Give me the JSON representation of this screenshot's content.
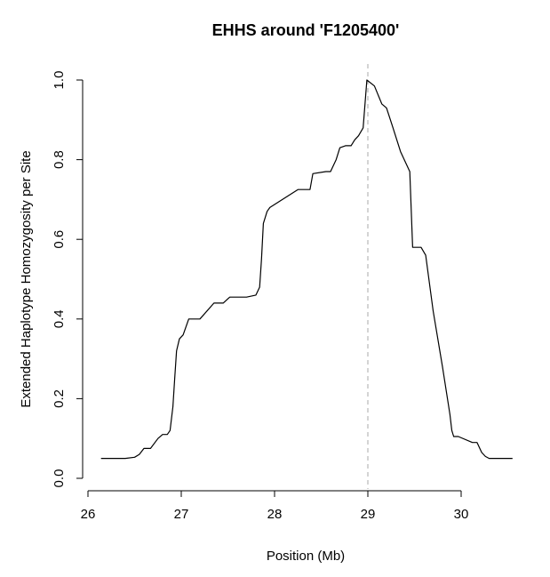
{
  "chart_data": {
    "type": "line",
    "title": "EHHS around 'F1205400'",
    "xlabel": "Position (Mb)",
    "ylabel": "Extended Haplotype Homozygosity per Site",
    "xlim": [
      26,
      30
    ],
    "ylim": [
      0,
      1
    ],
    "x_ticks": [
      26,
      27,
      28,
      29,
      30
    ],
    "y_ticks": [
      0.0,
      0.2,
      0.4,
      0.6,
      0.8,
      1.0
    ],
    "x_tick_labels": [
      "26",
      "27",
      "28",
      "29",
      "30"
    ],
    "y_tick_labels": [
      "0.0",
      "0.2",
      "0.4",
      "0.6",
      "0.8",
      "1.0"
    ],
    "reference_line": {
      "x": 29.0,
      "color": "#aaaaaa",
      "style": "dashed"
    },
    "grid": false,
    "series": [
      {
        "color": "#000000",
        "x": [
          26.14,
          26.4,
          26.5,
          26.55,
          26.6,
          26.67,
          26.75,
          26.8,
          26.85,
          26.88,
          26.91,
          26.93,
          26.95,
          26.98,
          27.02,
          27.08,
          27.2,
          27.35,
          27.45,
          27.52,
          27.6,
          27.7,
          27.8,
          27.84,
          27.86,
          27.88,
          27.92,
          27.95,
          28.25,
          28.38,
          28.41,
          28.55,
          28.6,
          28.66,
          28.7,
          28.76,
          28.82,
          28.86,
          28.9,
          28.95,
          28.99,
          29.07,
          29.15,
          29.2,
          29.27,
          29.35,
          29.45,
          29.48,
          29.5,
          29.57,
          29.62,
          29.7,
          29.8,
          29.88,
          29.9,
          29.92,
          29.97,
          30.12,
          30.17,
          30.22,
          30.26,
          30.3,
          30.4,
          30.55
        ],
        "y": [
          0.05,
          0.05,
          0.053,
          0.06,
          0.075,
          0.075,
          0.1,
          0.11,
          0.11,
          0.12,
          0.18,
          0.25,
          0.32,
          0.35,
          0.36,
          0.4,
          0.4,
          0.44,
          0.44,
          0.455,
          0.455,
          0.455,
          0.46,
          0.48,
          0.55,
          0.64,
          0.67,
          0.68,
          0.725,
          0.725,
          0.765,
          0.77,
          0.77,
          0.8,
          0.83,
          0.835,
          0.835,
          0.85,
          0.86,
          0.88,
          1.0,
          0.985,
          0.94,
          0.93,
          0.88,
          0.82,
          0.77,
          0.58,
          0.58,
          0.58,
          0.56,
          0.42,
          0.28,
          0.16,
          0.12,
          0.105,
          0.105,
          0.09,
          0.09,
          0.065,
          0.055,
          0.05,
          0.05,
          0.05
        ]
      }
    ]
  }
}
